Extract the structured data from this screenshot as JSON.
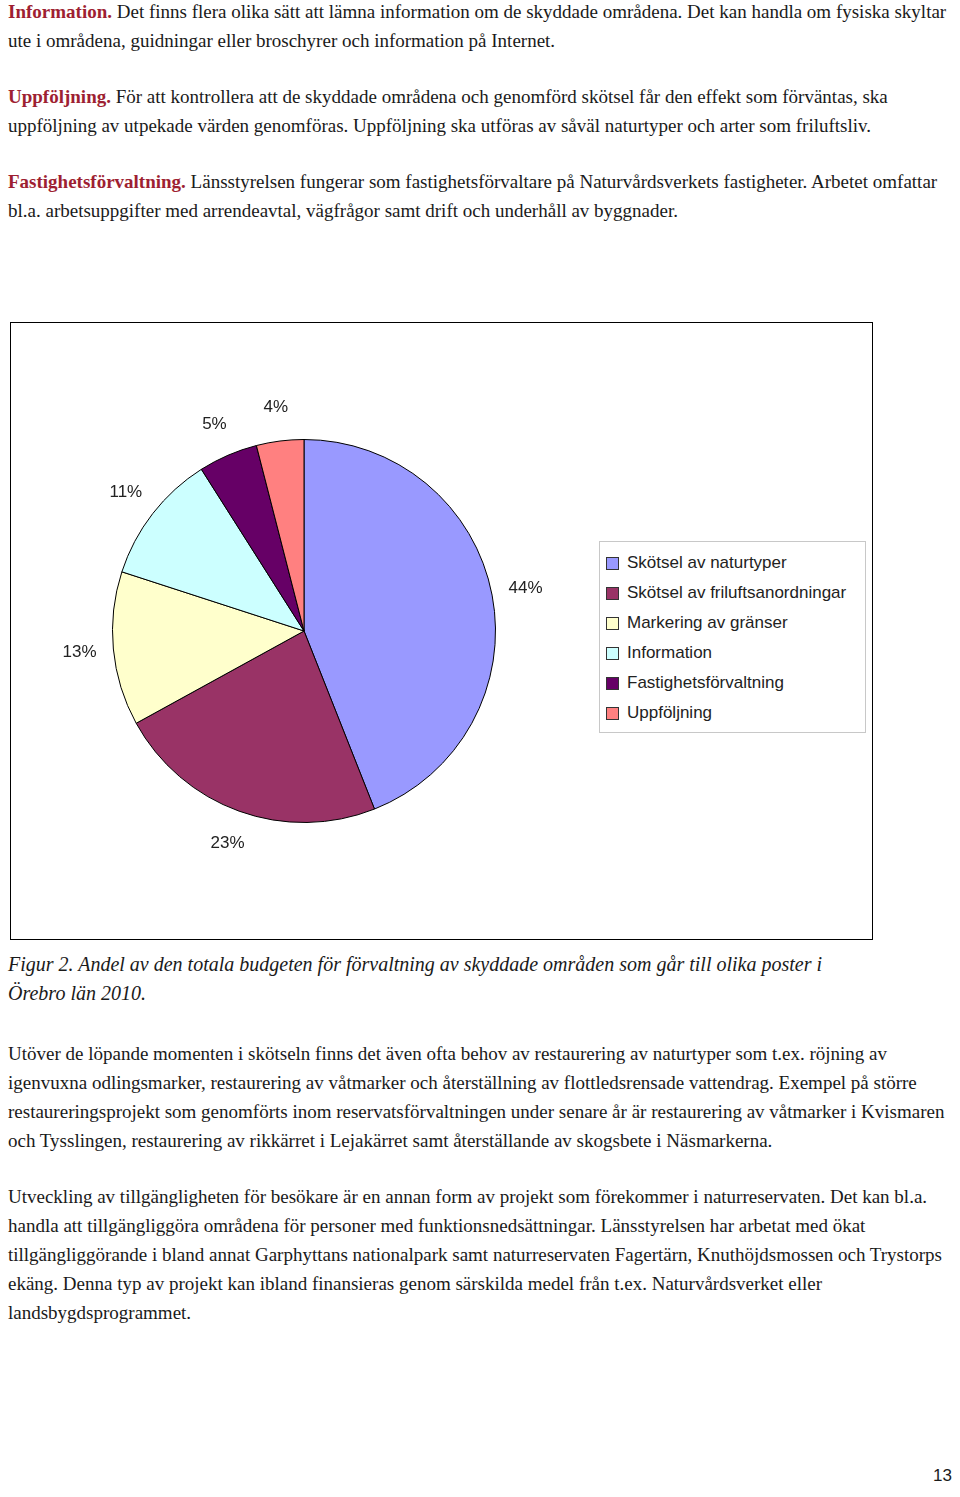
{
  "paragraphs_top": [
    {
      "lead": "Information.",
      "text": "Det finns flera olika sätt att lämna information om de skyddade områdena. Det kan handla om fysiska skyltar ute i områdena, guidningar eller broschyrer och information på Internet."
    },
    {
      "lead": "Uppföljning.",
      "text": "För att kontrollera att de skyddade områdena och genomförd skötsel får den effekt som förväntas, ska uppföljning av utpekade värden genomföras. Uppföljning ska utföras av såväl naturtyper och arter som friluftsliv."
    },
    {
      "lead": "Fastighetsförvaltning.",
      "text": "Länsstyrelsen fungerar som fastighetsförvaltare på Naturvårdsverkets fastigheter. Arbetet omfattar bl.a. arbetsuppgifter med arrendeavtal, vägfrågor samt drift och underhåll av byggnader."
    }
  ],
  "chart_data": {
    "type": "pie",
    "categories": [
      "Skötsel av naturtyper",
      "Skötsel av friluftsanordningar",
      "Markering av gränser",
      "Information",
      "Fastighetsförvaltning",
      "Uppföljning"
    ],
    "values": [
      44,
      23,
      13,
      11,
      5,
      4
    ],
    "value_labels": [
      "44%",
      "23%",
      "13%",
      "11%",
      "5%",
      "4%"
    ],
    "colors": [
      "#9999ff",
      "#993366",
      "#ffffcc",
      "#ccffff",
      "#660066",
      "#ff8080"
    ],
    "data_labels": true,
    "legend": "right"
  },
  "caption": "Figur 2. Andel av den totala budgeten för förvaltning av skyddade områden som går till olika poster i Örebro län 2010.",
  "paragraphs_bottom": [
    {
      "text": "Utöver de löpande momenten i skötseln finns det även ofta behov av restaurering av naturtyper som t.ex. röjning av igenvuxna odlingsmarker, restaurering av våtmarker och återställning av flottledsrensade vattendrag. Exempel på större restaureringsprojekt som genomförts inom reservatsförvaltningen under senare år är restaurering av våtmarker i Kvismaren och Tysslingen, restaurering av rikkärret i Lejakärret samt återställande av skogsbete i Näsmarkerna."
    },
    {
      "text": "Utveckling av tillgängligheten för besökare är en annan form av projekt som förekommer i naturreservaten. Det kan bl.a. handla att tillgängliggöra områdena för personer med funktionsnedsättningar. Länsstyrelsen har arbetat med ökat tillgängliggörande i bland annat Garphyttans nationalpark samt naturreservaten Fagertärn, Knuthöjdsmossen och Trystorps ekäng. Denna typ av projekt kan ibland finansieras genom särskilda medel från t.ex. Naturvårdsverket eller landsbygdsprogrammet."
    }
  ],
  "page_number": 13
}
